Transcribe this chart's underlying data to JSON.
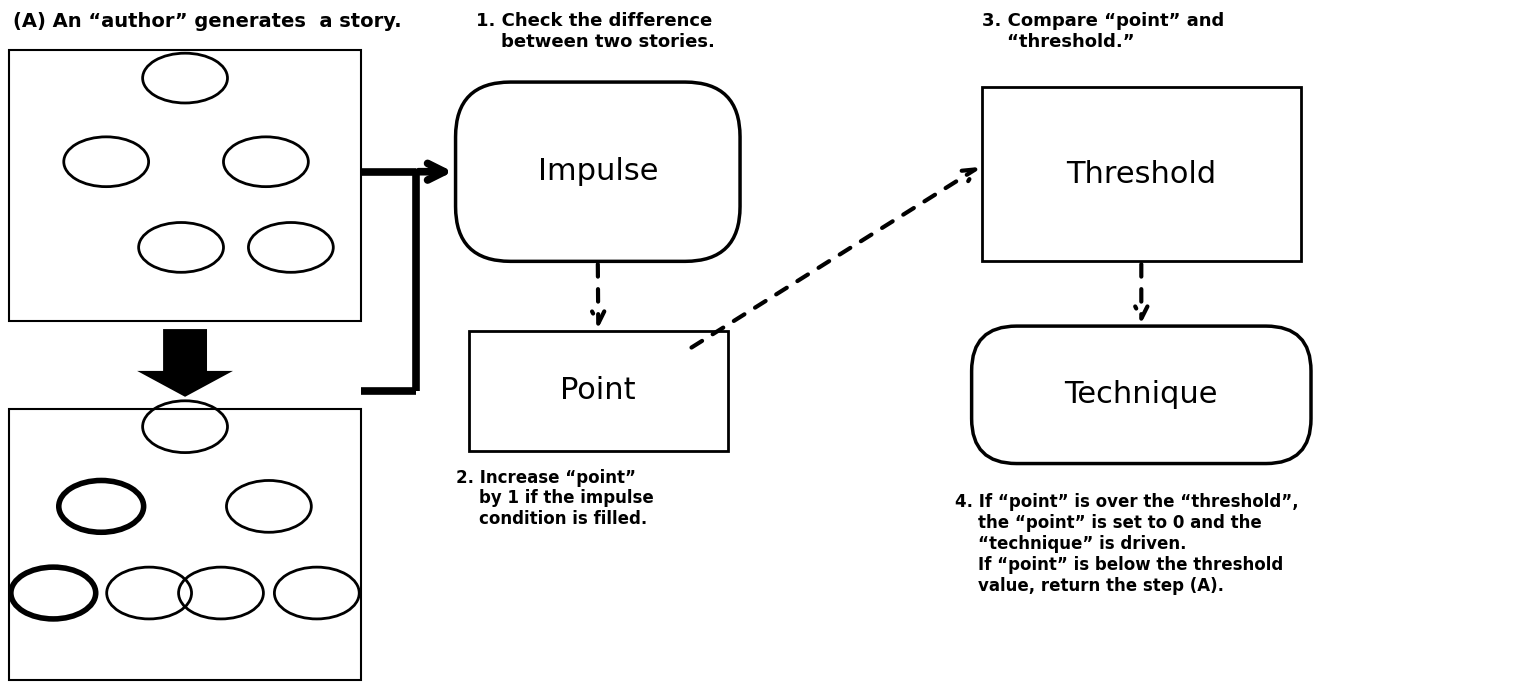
{
  "fig_width": 15.28,
  "fig_height": 6.99,
  "bg_color": "#ffffff",
  "title_text": "(A) An “author” generates  a story.",
  "label1": "1. Check the difference\n    between two stories.",
  "label2": "2. Increase “point”\n    by 1 if the impulse\n    condition is filled.",
  "label3": "3. Compare “point” and\n    “threshold.”",
  "label4": "4. If “point” is over the “threshold”,\n    the “point” is set to 0 and the\n    “technique” is driven.\n    If “point” is below the threshold\n    value, return the step (A).",
  "impulse_label": "Impulse",
  "point_label": "Point",
  "threshold_label": "Threshold",
  "technique_label": "Technique"
}
